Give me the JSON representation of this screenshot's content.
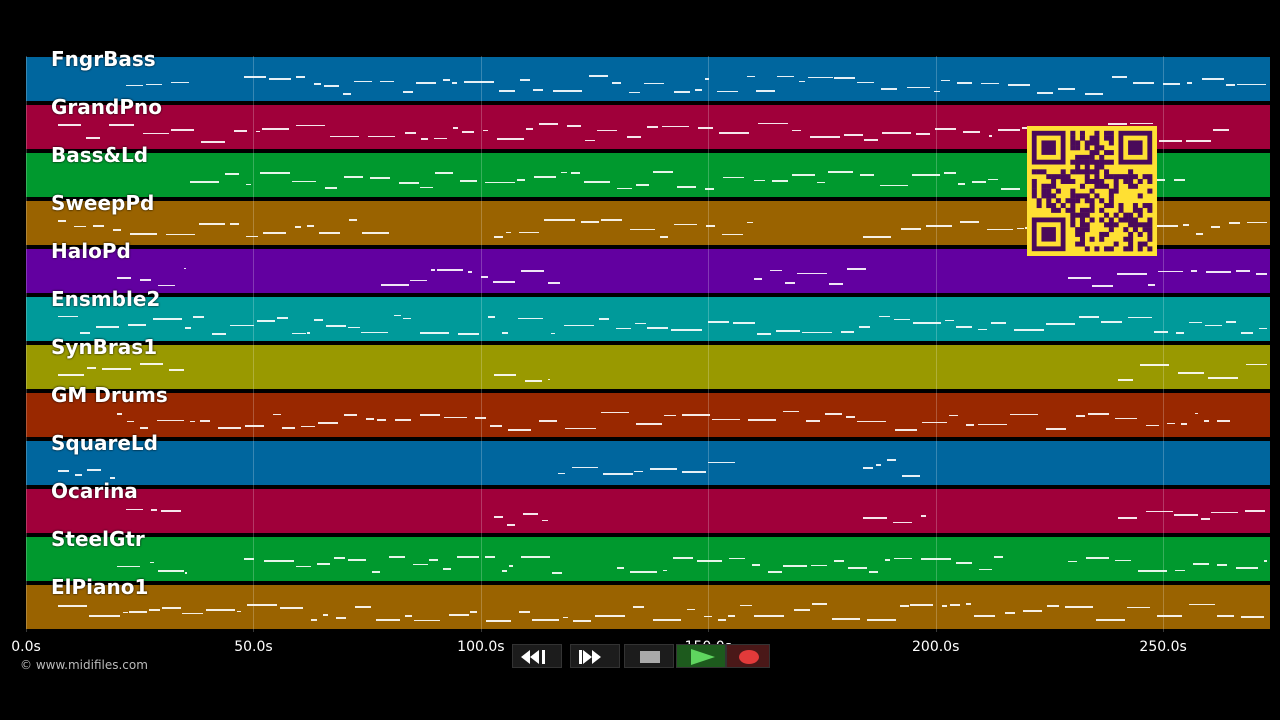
{
  "tracks": [
    {
      "label": "FngrBass",
      "color": "#00669e"
    },
    {
      "label": "GrandPno",
      "color": "#a0003a"
    },
    {
      "label": "Bass&Ld",
      "color": "#00992e"
    },
    {
      "label": "SweepPd",
      "color": "#9a6300"
    },
    {
      "label": "HaloPd",
      "color": "#6200a0"
    },
    {
      "label": "Ensmble2",
      "color": "#009a9a"
    },
    {
      "label": "SynBras1",
      "color": "#999900"
    },
    {
      "label": "GM Drums",
      "color": "#992800"
    },
    {
      "label": "SquareLd",
      "color": "#00669e"
    },
    {
      "label": "Ocarina",
      "color": "#a0003a"
    },
    {
      "label": "SteelGtr",
      "color": "#00992e"
    },
    {
      "label": "ElPiano1",
      "color": "#9a6300"
    }
  ],
  "time_axis": {
    "ticks": [
      "0.0s",
      "50.0s",
      "100.0s",
      "150.0s",
      "200.0s",
      "250.0s"
    ],
    "tick_values": [
      0,
      50,
      100,
      150,
      200,
      250
    ],
    "max_seconds": 273.5
  },
  "copyright": "© www.midifiles.com",
  "transport": {
    "buttons": [
      {
        "name": "rewind-button",
        "icon": "rewind-icon"
      },
      {
        "name": "fast-forward-button",
        "icon": "fast-forward-icon"
      },
      {
        "name": "stop-button",
        "icon": "stop-icon"
      },
      {
        "name": "play-button",
        "icon": "play-icon"
      },
      {
        "name": "record-button",
        "icon": "record-icon"
      }
    ]
  },
  "qr_code": {
    "icon": "qr-code-icon",
    "color": "#ffe033",
    "module_color": "#4a0a5a"
  }
}
